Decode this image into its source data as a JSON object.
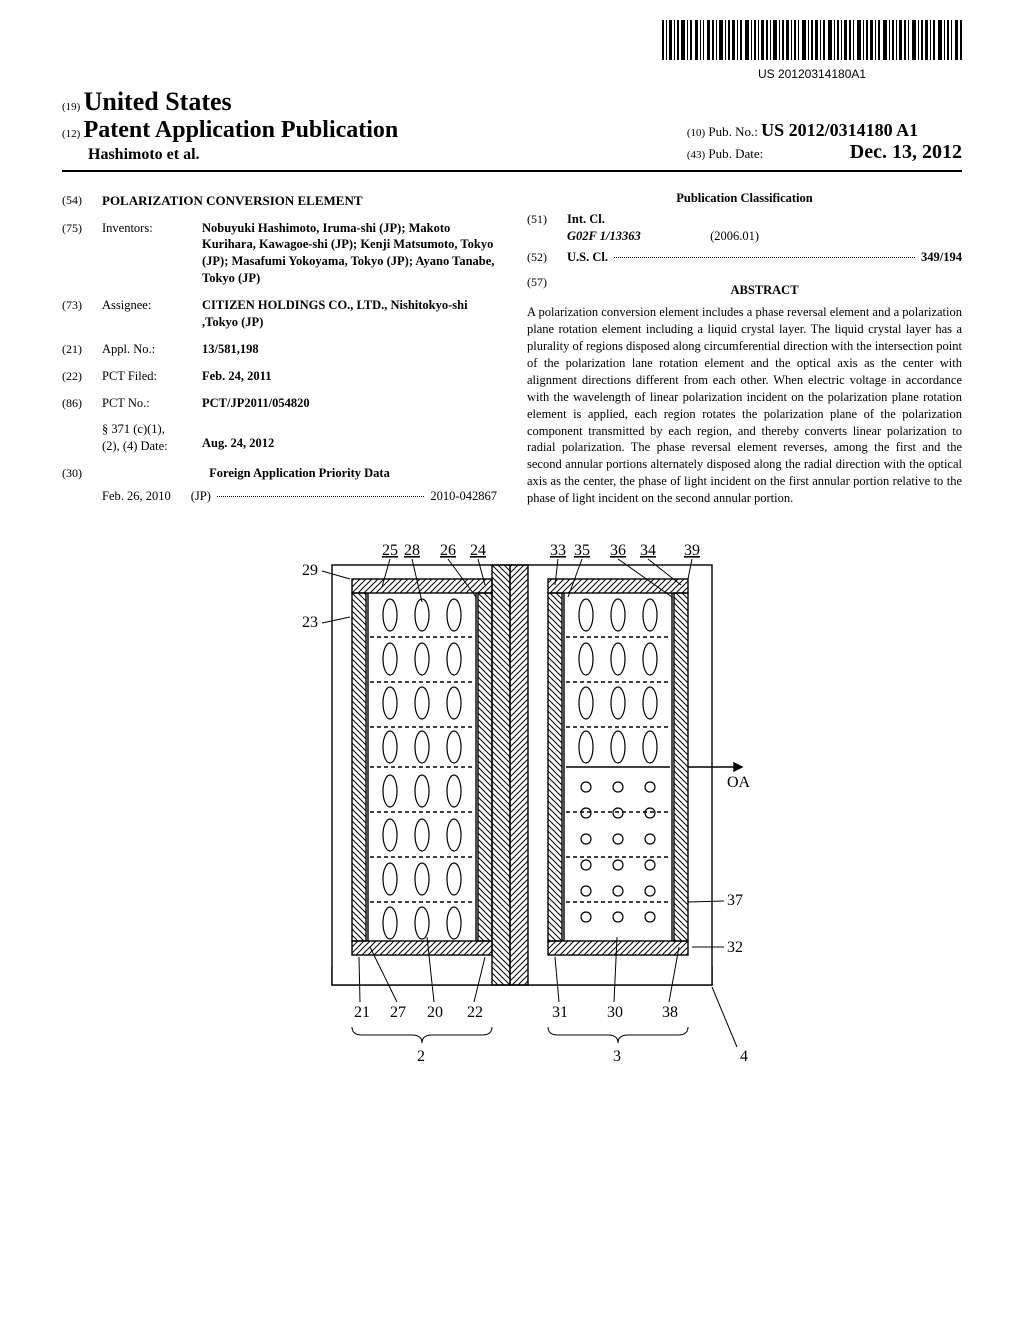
{
  "barcode_text": "US 20120314180A1",
  "header": {
    "authority_code": "(19)",
    "authority": "United States",
    "pub_type_code": "(12)",
    "pub_type": "Patent Application Publication",
    "inventors_line": "Hashimoto et al.",
    "pub_no_code": "(10)",
    "pub_no_label": "Pub. No.:",
    "pub_no": "US 2012/0314180 A1",
    "pub_date_code": "(43)",
    "pub_date_label": "Pub. Date:",
    "pub_date": "Dec. 13, 2012"
  },
  "left": {
    "title_code": "(54)",
    "title": "POLARIZATION CONVERSION ELEMENT",
    "inventors_code": "(75)",
    "inventors_label": "Inventors:",
    "inventors_val": "Nobuyuki Hashimoto, Iruma-shi (JP); Makoto Kurihara, Kawagoe-shi (JP); Kenji Matsumoto, Tokyo (JP); Masafumi Yokoyama, Tokyo (JP); Ayano Tanabe, Tokyo (JP)",
    "assignee_code": "(73)",
    "assignee_label": "Assignee:",
    "assignee_val": "CITIZEN HOLDINGS CO., LTD., Nishitokyo-shi ,Tokyo (JP)",
    "appl_code": "(21)",
    "appl_label": "Appl. No.:",
    "appl_val": "13/581,198",
    "filed_code": "(22)",
    "filed_label": "PCT Filed:",
    "filed_val": "Feb. 24, 2011",
    "pct_code": "(86)",
    "pct_label": "PCT No.:",
    "pct_val": "PCT/JP2011/054820",
    "s371_label": "§ 371 (c)(1),\n(2), (4) Date:",
    "s371_val": "Aug. 24, 2012",
    "foreign_code": "(30)",
    "foreign_heading": "Foreign Application Priority Data",
    "foreign_date": "Feb. 26, 2010",
    "foreign_country": "(JP)",
    "foreign_num": "2010-042867"
  },
  "right": {
    "classification_heading": "Publication Classification",
    "intcl_code": "(51)",
    "intcl_label": "Int. Cl.",
    "intcl_sym": "G02F 1/13363",
    "intcl_date": "(2006.01)",
    "uscl_code": "(52)",
    "uscl_label": "U.S. Cl.",
    "uscl_val": "349/194",
    "abstract_code": "(57)",
    "abstract_heading": "ABSTRACT",
    "abstract_text": "A polarization conversion element includes a phase reversal element and a polarization plane rotation element including a liquid crystal layer. The liquid crystal layer has a plurality of regions disposed along circumferential direction with the intersection point of the polarization lane rotation element and the optical axis as the center with alignment directions different from each other. When electric voltage in accordance with the wavelength of linear polarization incident on the polarization plane rotation element is applied, each region rotates the polarization plane of the polarization component transmitted by each region, and thereby converts linear polarization to radial polarization. The phase reversal element reverses, among the first and the second annular portions alternately disposed along the radial direction with the optical axis as the center, the phase of light incident on the first annular portion relative to the phase of light incident on the second annular portion."
  },
  "figure": {
    "top_labels": [
      "25",
      "28",
      "26",
      "24",
      "33",
      "35",
      "36",
      "34",
      "39"
    ],
    "left_labels": [
      "29",
      "23"
    ],
    "right_labels": [
      "OA",
      "37",
      "32"
    ],
    "bottom_labels": [
      "21",
      "27",
      "20",
      "22",
      "31",
      "30",
      "38"
    ],
    "group_labels": [
      "2",
      "3",
      "4"
    ],
    "colors": {
      "stroke": "#000000",
      "hatch": "#000000",
      "bg": "#ffffff"
    },
    "stroke_width": 1.4
  }
}
